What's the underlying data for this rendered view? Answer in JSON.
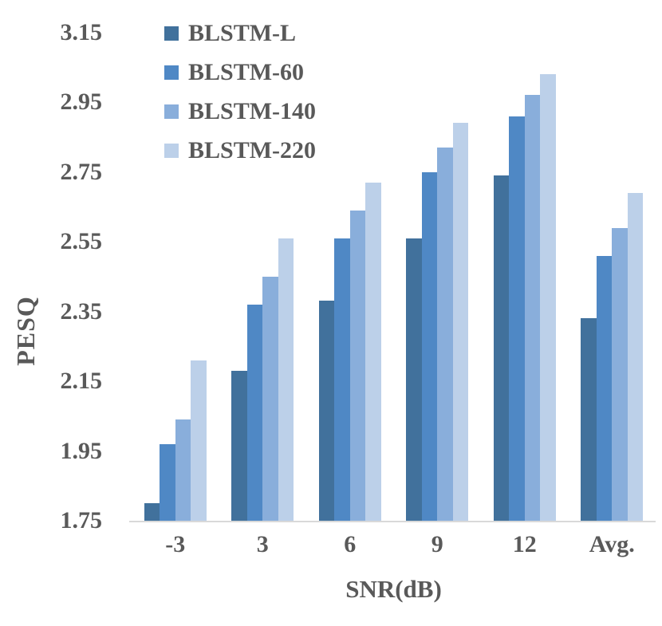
{
  "chart_data": {
    "type": "bar",
    "title": "",
    "xlabel": "SNR(dB)",
    "ylabel": "PESQ",
    "categories": [
      "-3",
      "3",
      "6",
      "9",
      "12",
      "Avg."
    ],
    "series": [
      {
        "name": "BLSTM-L",
        "color": "#41719C",
        "values": [
          1.8,
          2.18,
          2.38,
          2.56,
          2.74,
          2.33
        ]
      },
      {
        "name": "BLSTM-60",
        "color": "#4F88C5",
        "values": [
          1.97,
          2.37,
          2.56,
          2.75,
          2.91,
          2.51
        ]
      },
      {
        "name": "BLSTM-140",
        "color": "#89AEDB",
        "values": [
          2.04,
          2.45,
          2.64,
          2.82,
          2.97,
          2.59
        ]
      },
      {
        "name": "BLSTM-220",
        "color": "#BCD0E9",
        "values": [
          2.21,
          2.56,
          2.72,
          2.89,
          3.03,
          2.69
        ]
      }
    ],
    "ylim": [
      1.75,
      3.15
    ],
    "yticks": [
      3.15,
      2.95,
      2.75,
      2.55,
      2.35,
      2.15,
      1.95,
      1.75
    ],
    "ytick_step": 0.2,
    "grid": false,
    "legend_position": "top-left-inside",
    "axis_line_color": "#D9D9D9",
    "text_color": "#595959"
  }
}
